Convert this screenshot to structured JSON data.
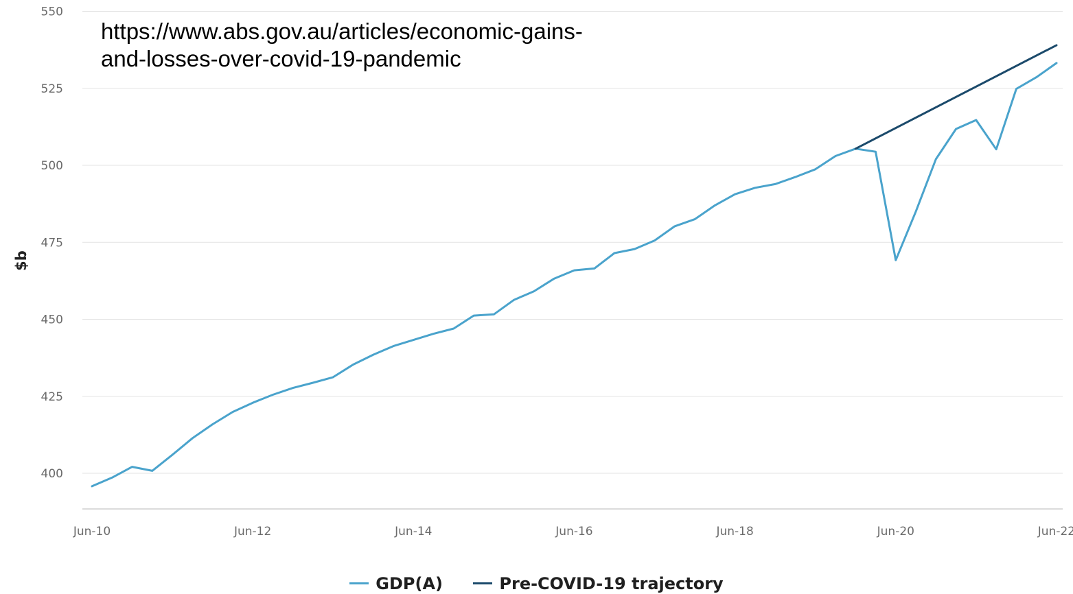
{
  "chart_data": {
    "type": "line",
    "title": "",
    "xlabel": "",
    "ylabel": "$b",
    "ylim": [
      390,
      550
    ],
    "yticks": [
      400,
      425,
      450,
      475,
      500,
      525,
      550
    ],
    "xtick_labels": [
      "Jun-10",
      "Jun-12",
      "Jun-14",
      "Jun-16",
      "Jun-18",
      "Jun-20",
      "Jun-22"
    ],
    "xtick_quarter_index": [
      0,
      8,
      16,
      24,
      32,
      40,
      48
    ],
    "grid": true,
    "legend_position": "bottom-center",
    "series": [
      {
        "name": "GDP(A)",
        "color": "#4aa3cc",
        "x_quarter_index": [
          0,
          1,
          2,
          3,
          4,
          5,
          6,
          7,
          8,
          9,
          10,
          11,
          12,
          13,
          14,
          15,
          16,
          17,
          18,
          19,
          20,
          21,
          22,
          23,
          24,
          25,
          26,
          27,
          28,
          29,
          30,
          31,
          32,
          33,
          34,
          35,
          36,
          37,
          38,
          39,
          40,
          41,
          42,
          43,
          44,
          45,
          46,
          47,
          48
        ],
        "values": [
          395.8,
          398.6,
          402.1,
          400.8,
          406.0,
          411.4,
          415.9,
          419.9,
          422.9,
          425.5,
          427.7,
          429.4,
          431.2,
          435.3,
          438.5,
          441.3,
          443.3,
          445.3,
          447.0,
          451.2,
          451.6,
          456.3,
          459.1,
          463.2,
          465.9,
          466.5,
          471.5,
          472.8,
          475.6,
          480.2,
          482.5,
          487.0,
          490.6,
          492.7,
          493.9,
          496.2,
          498.7,
          503.0,
          505.4,
          504.4,
          469.2,
          485.0,
          502.0,
          511.8,
          514.7,
          505.2,
          524.8,
          528.6,
          533.2
        ]
      },
      {
        "name": "Pre-COVID-19 trajectory",
        "color": "#1b4a6b",
        "x_quarter_index": [
          38,
          48
        ],
        "values": [
          505.4,
          539.0
        ]
      }
    ]
  },
  "annotation": {
    "text": "https://www.abs.gov.au/articles/economic-gains-and-losses-over-covid-19-pandemic"
  }
}
